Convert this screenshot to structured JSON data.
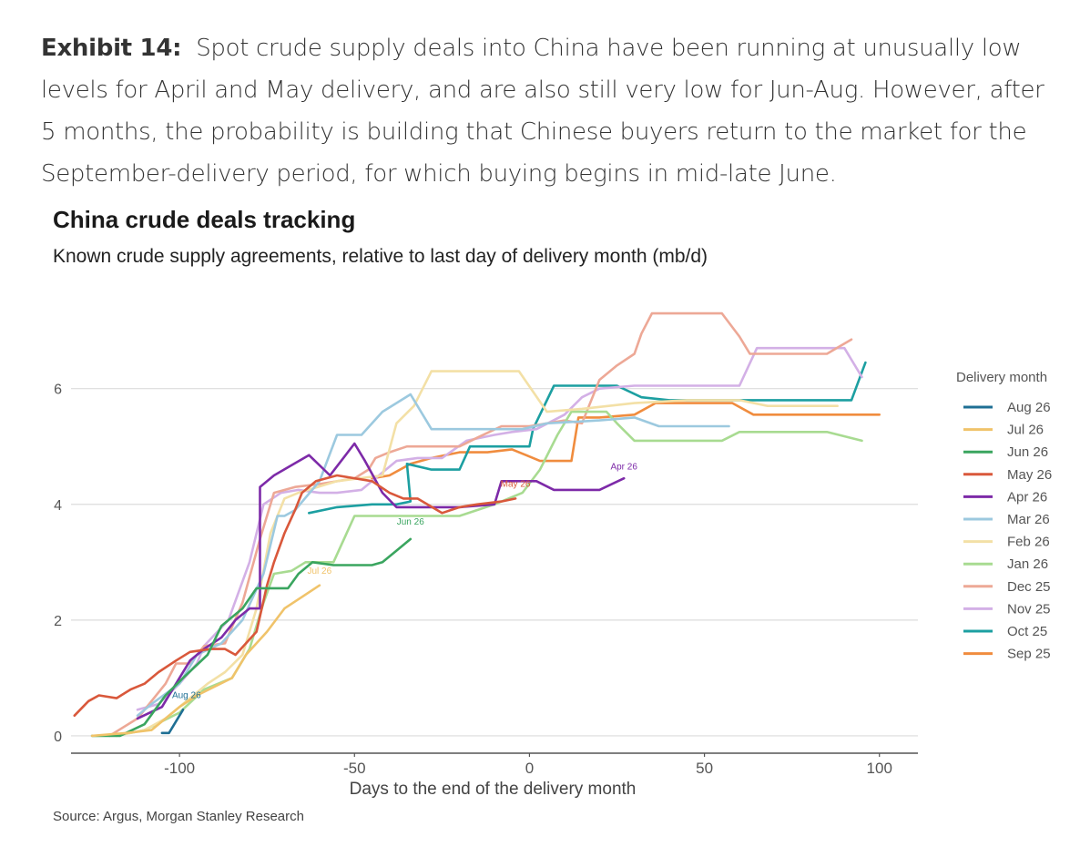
{
  "exhibit": {
    "label": "Exhibit 14:",
    "text": "Spot crude supply deals into China have been running at unusually low levels for April and May delivery, and are also still very low for Jun-Aug. However, after 5 months, the probability is building that Chinese buyers return to the market for the September-delivery period, for which buying begins in mid-late June."
  },
  "source": "Source: Argus, Morgan Stanley Research",
  "chart_data": {
    "type": "line",
    "title": "China crude deals tracking",
    "subtitle": "Known crude supply agreements, relative to last day of delivery month (mb/d)",
    "xlabel": "Days to the end of the delivery month",
    "ylabel": "",
    "xlim": [
      -131,
      111
    ],
    "ylim": [
      -0.3,
      7.6
    ],
    "xticks": [
      -100,
      -50,
      0,
      50,
      100
    ],
    "yticks": [
      0,
      2,
      4,
      6
    ],
    "grid": "horizontal",
    "legend": {
      "title": "Delivery month",
      "placement": "right"
    },
    "series": [
      {
        "name": "Aug 26",
        "color": "#1f6f94",
        "label": "Aug 26",
        "points": [
          [
            -105,
            0.05
          ],
          [
            -103,
            0.05
          ],
          [
            -101,
            0.25
          ],
          [
            -99,
            0.45
          ]
        ]
      },
      {
        "name": "Jul 26",
        "color": "#f0c36a",
        "label": "Jul 26",
        "points": [
          [
            -125,
            0.0
          ],
          [
            -115,
            0.05
          ],
          [
            -108,
            0.1
          ],
          [
            -100,
            0.5
          ],
          [
            -95,
            0.7
          ],
          [
            -85,
            1.0
          ],
          [
            -81,
            1.4
          ],
          [
            -75,
            1.8
          ],
          [
            -70,
            2.2
          ],
          [
            -65,
            2.4
          ],
          [
            -60,
            2.6
          ]
        ]
      },
      {
        "name": "Jun 26",
        "color": "#3aa55f",
        "label": "Jun 26",
        "points": [
          [
            -125,
            0.0
          ],
          [
            -117,
            0.0
          ],
          [
            -110,
            0.2
          ],
          [
            -104,
            0.7
          ],
          [
            -99,
            1.0
          ],
          [
            -92,
            1.4
          ],
          [
            -88,
            1.9
          ],
          [
            -82,
            2.2
          ],
          [
            -78,
            2.55
          ],
          [
            -73,
            2.55
          ],
          [
            -69,
            2.55
          ],
          [
            -66,
            2.8
          ],
          [
            -62,
            3.0
          ],
          [
            -56,
            2.95
          ],
          [
            -45,
            2.95
          ],
          [
            -42,
            3.0
          ],
          [
            -38,
            3.2
          ],
          [
            -34,
            3.4
          ]
        ]
      },
      {
        "name": "May 26",
        "color": "#d9583b",
        "label": "May 26",
        "points": [
          [
            -130,
            0.35
          ],
          [
            -126,
            0.6
          ],
          [
            -123,
            0.7
          ],
          [
            -118,
            0.65
          ],
          [
            -114,
            0.8
          ],
          [
            -110,
            0.9
          ],
          [
            -106,
            1.1
          ],
          [
            -101,
            1.3
          ],
          [
            -97,
            1.45
          ],
          [
            -91,
            1.5
          ],
          [
            -87,
            1.5
          ],
          [
            -84,
            1.4
          ],
          [
            -78,
            1.8
          ],
          [
            -75,
            2.6
          ],
          [
            -73,
            3.0
          ],
          [
            -70,
            3.5
          ],
          [
            -67,
            3.9
          ],
          [
            -65,
            4.2
          ],
          [
            -61,
            4.4
          ],
          [
            -55,
            4.5
          ],
          [
            -45,
            4.4
          ],
          [
            -40,
            4.2
          ],
          [
            -36,
            4.1
          ],
          [
            -32,
            4.1
          ],
          [
            -25,
            3.85
          ],
          [
            -20,
            3.95
          ],
          [
            -15,
            4.0
          ],
          [
            -8,
            4.05
          ],
          [
            -4,
            4.1
          ]
        ]
      },
      {
        "name": "Apr 26",
        "color": "#7d2aa8",
        "label": "Apr 26",
        "points": [
          [
            -112,
            0.3
          ],
          [
            -105,
            0.5
          ],
          [
            -101,
            0.9
          ],
          [
            -97,
            1.3
          ],
          [
            -93,
            1.5
          ],
          [
            -88,
            1.7
          ],
          [
            -84,
            2.0
          ],
          [
            -80,
            2.2
          ],
          [
            -77,
            2.2
          ],
          [
            -77,
            4.3
          ],
          [
            -73,
            4.5
          ],
          [
            -63,
            4.85
          ],
          [
            -57,
            4.5
          ],
          [
            -50,
            5.05
          ],
          [
            -47,
            4.75
          ],
          [
            -42,
            4.2
          ],
          [
            -38,
            3.95
          ],
          [
            -30,
            3.95
          ],
          [
            -20,
            3.95
          ],
          [
            -10,
            4.0
          ],
          [
            -8,
            4.4
          ],
          [
            2,
            4.4
          ],
          [
            7,
            4.25
          ],
          [
            20,
            4.25
          ],
          [
            27,
            4.45
          ]
        ]
      },
      {
        "name": "Mar 26",
        "color": "#9cc9df",
        "label": "Mar 26",
        "points": [
          [
            -112,
            0.35
          ],
          [
            -108,
            0.55
          ],
          [
            -100,
            0.9
          ],
          [
            -95,
            1.4
          ],
          [
            -88,
            1.6
          ],
          [
            -82,
            2.0
          ],
          [
            -76,
            2.8
          ],
          [
            -72,
            3.8
          ],
          [
            -70,
            3.8
          ],
          [
            -67,
            3.9
          ],
          [
            -60,
            4.4
          ],
          [
            -55,
            5.2
          ],
          [
            -48,
            5.2
          ],
          [
            -42,
            5.6
          ],
          [
            -34,
            5.9
          ],
          [
            -28,
            5.3
          ],
          [
            -20,
            5.3
          ],
          [
            -10,
            5.3
          ],
          [
            -2,
            5.3
          ],
          [
            5,
            5.4
          ],
          [
            20,
            5.45
          ],
          [
            30,
            5.5
          ],
          [
            37,
            5.35
          ],
          [
            50,
            5.35
          ],
          [
            57,
            5.35
          ]
        ]
      },
      {
        "name": "Feb 26",
        "color": "#f3e0a6",
        "label": "Feb 26",
        "points": [
          [
            -118,
            0.0
          ],
          [
            -110,
            0.1
          ],
          [
            -104,
            0.3
          ],
          [
            -98,
            0.6
          ],
          [
            -92,
            0.9
          ],
          [
            -87,
            1.1
          ],
          [
            -82,
            1.4
          ],
          [
            -78,
            2.2
          ],
          [
            -74,
            3.5
          ],
          [
            -70,
            4.1
          ],
          [
            -66,
            4.2
          ],
          [
            -55,
            4.4
          ],
          [
            -42,
            4.5
          ],
          [
            -38,
            5.4
          ],
          [
            -33,
            5.7
          ],
          [
            -28,
            6.3
          ],
          [
            -20,
            6.3
          ],
          [
            -10,
            6.3
          ],
          [
            -3,
            6.3
          ],
          [
            5,
            5.6
          ],
          [
            15,
            5.65
          ],
          [
            30,
            5.75
          ],
          [
            45,
            5.8
          ],
          [
            60,
            5.8
          ],
          [
            68,
            5.7
          ],
          [
            88,
            5.7
          ]
        ]
      },
      {
        "name": "Jan 26",
        "color": "#a8db91",
        "label": "Jan 26",
        "points": [
          [
            -118,
            0.0
          ],
          [
            -110,
            0.1
          ],
          [
            -100,
            0.4
          ],
          [
            -93,
            0.8
          ],
          [
            -85,
            1.0
          ],
          [
            -80,
            1.5
          ],
          [
            -76,
            2.3
          ],
          [
            -73,
            2.8
          ],
          [
            -68,
            2.85
          ],
          [
            -64,
            3.0
          ],
          [
            -56,
            3.0
          ],
          [
            -50,
            3.8
          ],
          [
            -40,
            3.8
          ],
          [
            -30,
            3.8
          ],
          [
            -20,
            3.8
          ],
          [
            -15,
            3.9
          ],
          [
            -10,
            4.0
          ],
          [
            -2,
            4.2
          ],
          [
            3,
            4.6
          ],
          [
            8,
            5.2
          ],
          [
            12,
            5.6
          ],
          [
            22,
            5.6
          ],
          [
            25,
            5.4
          ],
          [
            30,
            5.1
          ],
          [
            40,
            5.1
          ],
          [
            55,
            5.1
          ],
          [
            60,
            5.25
          ],
          [
            70,
            5.25
          ],
          [
            85,
            5.25
          ],
          [
            95,
            5.1
          ]
        ]
      },
      {
        "name": "Dec 25",
        "color": "#eda896",
        "label": "Dec 25",
        "points": [
          [
            -120,
            0.0
          ],
          [
            -112,
            0.3
          ],
          [
            -104,
            0.9
          ],
          [
            -101,
            1.25
          ],
          [
            -97,
            1.25
          ],
          [
            -93,
            1.55
          ],
          [
            -87,
            1.6
          ],
          [
            -82,
            2.3
          ],
          [
            -77,
            3.4
          ],
          [
            -73,
            4.2
          ],
          [
            -67,
            4.3
          ],
          [
            -60,
            4.35
          ],
          [
            -50,
            4.45
          ],
          [
            -46,
            4.6
          ],
          [
            -44,
            4.8
          ],
          [
            -40,
            4.9
          ],
          [
            -35,
            5.0
          ],
          [
            -28,
            5.0
          ],
          [
            -20,
            5.0
          ],
          [
            -15,
            5.15
          ],
          [
            -8,
            5.35
          ],
          [
            0,
            5.35
          ],
          [
            10,
            5.45
          ],
          [
            15,
            5.4
          ],
          [
            20,
            6.15
          ],
          [
            25,
            6.4
          ],
          [
            30,
            6.6
          ],
          [
            32,
            6.95
          ],
          [
            35,
            7.3
          ],
          [
            45,
            7.3
          ],
          [
            55,
            7.3
          ],
          [
            60,
            6.9
          ],
          [
            63,
            6.6
          ],
          [
            70,
            6.6
          ],
          [
            85,
            6.6
          ],
          [
            92,
            6.85
          ]
        ]
      },
      {
        "name": "Nov 25",
        "color": "#d3b0e6",
        "label": "Nov 25",
        "points": [
          [
            -112,
            0.45
          ],
          [
            -106,
            0.55
          ],
          [
            -100,
            0.9
          ],
          [
            -95,
            1.25
          ],
          [
            -93,
            1.55
          ],
          [
            -86,
            2.0
          ],
          [
            -80,
            3.0
          ],
          [
            -76,
            4.0
          ],
          [
            -71,
            4.2
          ],
          [
            -66,
            4.25
          ],
          [
            -60,
            4.2
          ],
          [
            -55,
            4.2
          ],
          [
            -48,
            4.25
          ],
          [
            -42,
            4.55
          ],
          [
            -38,
            4.75
          ],
          [
            -32,
            4.8
          ],
          [
            -25,
            4.8
          ],
          [
            -18,
            5.1
          ],
          [
            -10,
            5.2
          ],
          [
            -5,
            5.25
          ],
          [
            2,
            5.3
          ],
          [
            10,
            5.55
          ],
          [
            15,
            5.85
          ],
          [
            20,
            6.0
          ],
          [
            30,
            6.05
          ],
          [
            40,
            6.05
          ],
          [
            50,
            6.05
          ],
          [
            60,
            6.05
          ],
          [
            65,
            6.7
          ],
          [
            75,
            6.7
          ],
          [
            90,
            6.7
          ],
          [
            95,
            6.2
          ]
        ]
      },
      {
        "name": "Oct 25",
        "color": "#1c9fa1",
        "label": "Oct 25",
        "points": [
          [
            -63,
            3.85
          ],
          [
            -55,
            3.95
          ],
          [
            -45,
            4.0
          ],
          [
            -38,
            4.0
          ],
          [
            -34,
            4.05
          ],
          [
            -35,
            4.7
          ],
          [
            -28,
            4.6
          ],
          [
            -20,
            4.6
          ],
          [
            -17,
            5.0
          ],
          [
            -10,
            5.0
          ],
          [
            0,
            5.0
          ],
          [
            1,
            5.3
          ],
          [
            7,
            6.05
          ],
          [
            25,
            6.05
          ],
          [
            32,
            5.85
          ],
          [
            40,
            5.8
          ],
          [
            60,
            5.8
          ],
          [
            80,
            5.8
          ],
          [
            92,
            5.8
          ],
          [
            96,
            6.45
          ]
        ]
      },
      {
        "name": "Sep 25",
        "color": "#f08c3e",
        "label": "Sep 25",
        "points": [
          [
            -45,
            4.45
          ],
          [
            -40,
            4.5
          ],
          [
            -34,
            4.7
          ],
          [
            -28,
            4.8
          ],
          [
            -20,
            4.9
          ],
          [
            -12,
            4.9
          ],
          [
            -5,
            4.95
          ],
          [
            -1,
            4.85
          ],
          [
            3,
            4.75
          ],
          [
            12,
            4.75
          ],
          [
            14,
            5.5
          ],
          [
            20,
            5.5
          ],
          [
            30,
            5.55
          ],
          [
            36,
            5.75
          ],
          [
            50,
            5.75
          ],
          [
            58,
            5.75
          ],
          [
            64,
            5.55
          ],
          [
            80,
            5.55
          ],
          [
            100,
            5.55
          ]
        ]
      }
    ]
  }
}
